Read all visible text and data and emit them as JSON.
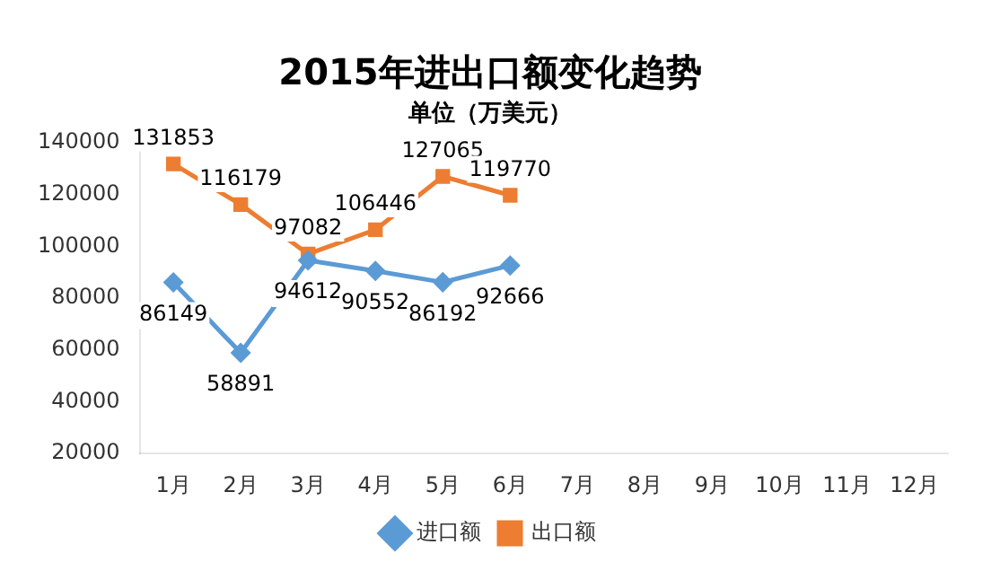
{
  "chart_data": {
    "type": "line",
    "title": "2015年进出口额变化趋势",
    "subtitle": "单位（万美元）",
    "categories": [
      "1月",
      "2月",
      "3月",
      "4月",
      "5月",
      "6月",
      "7月",
      "8月",
      "9月",
      "10月",
      "11月",
      "12月"
    ],
    "series": [
      {
        "name": "进口额",
        "color": "#5b9bd5",
        "marker": "diamond",
        "values": [
          86149,
          58891,
          94612,
          90552,
          86192,
          92666,
          null,
          null,
          null,
          null,
          null,
          null
        ]
      },
      {
        "name": "出口额",
        "color": "#ed7d31",
        "marker": "square",
        "values": [
          131853,
          116179,
          97082,
          106446,
          127065,
          119770,
          null,
          null,
          null,
          null,
          null,
          null
        ]
      }
    ],
    "ylim": [
      20000,
      140000
    ],
    "yticks": [
      20000,
      40000,
      60000,
      80000,
      100000,
      120000,
      140000
    ],
    "grid": false,
    "legend": "bottom",
    "data_labels": true
  }
}
